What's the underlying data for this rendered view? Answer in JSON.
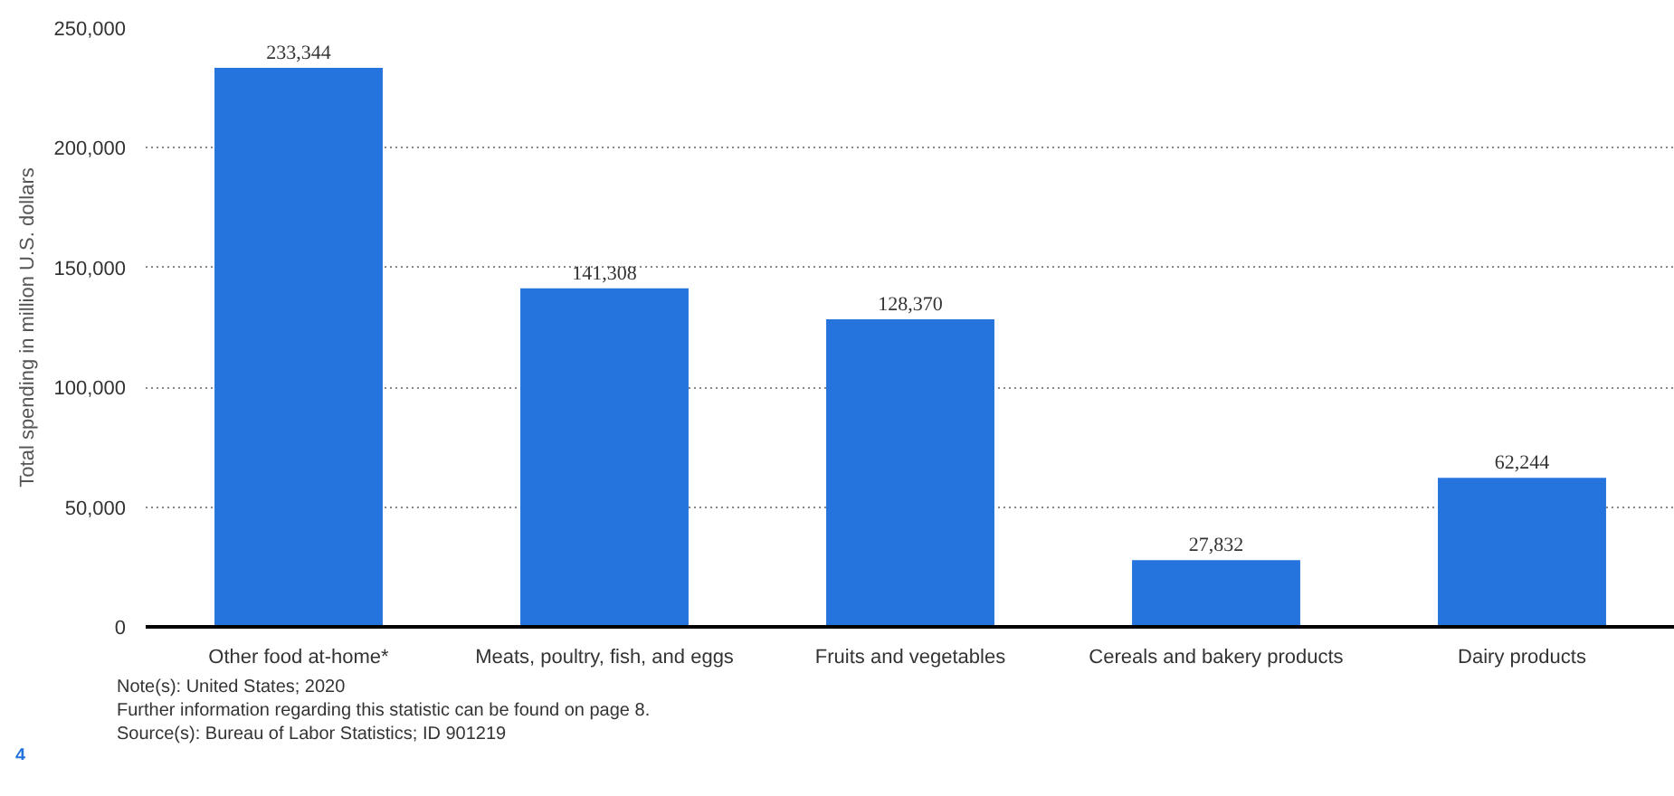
{
  "chart_data": {
    "type": "bar",
    "ylabel": "Total spending in million U.S. dollars",
    "categories": [
      "Other food at-home*",
      "Meats, poultry, fish, and eggs",
      "Fruits and vegetables",
      "Cereals and bakery products",
      "Dairy products"
    ],
    "values": [
      233344,
      141308,
      128370,
      27832,
      62244
    ],
    "value_labels": [
      "233,344",
      "141,308",
      "128,370",
      "27,832",
      "62,244"
    ],
    "color": "#2574de",
    "ylim": [
      0,
      250000
    ],
    "yticks": [
      {
        "value": 0,
        "label": "0"
      },
      {
        "value": 50000,
        "label": "50,000"
      },
      {
        "value": 100000,
        "label": "100,000"
      },
      {
        "value": 150000,
        "label": "150,000"
      },
      {
        "value": 200000,
        "label": "200,000"
      },
      {
        "value": 250000,
        "label": "250,000"
      }
    ],
    "grid": "y",
    "annotations": [
      "Note(s): United States; 2020",
      "Further information regarding this statistic can be found on page 8.",
      "Source(s): Bureau of Labor Statistics; ID 901219",
      "4"
    ]
  }
}
